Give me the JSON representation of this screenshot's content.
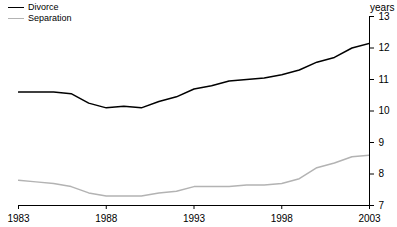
{
  "chart_data": {
    "type": "line",
    "y_label": "years",
    "x": [
      1983,
      1984,
      1985,
      1986,
      1987,
      1988,
      1989,
      1990,
      1991,
      1992,
      1993,
      1994,
      1995,
      1996,
      1997,
      1998,
      1999,
      2000,
      2001,
      2002,
      2003
    ],
    "series": [
      {
        "name": "Divorce",
        "color": "#000000",
        "values": [
          10.6,
          10.6,
          10.6,
          10.55,
          10.25,
          10.1,
          10.15,
          10.1,
          10.3,
          10.45,
          10.7,
          10.8,
          10.95,
          11.0,
          11.05,
          11.15,
          11.3,
          11.55,
          11.7,
          12.0,
          12.15
        ]
      },
      {
        "name": "Separation",
        "color": "#b3b3b3",
        "values": [
          7.8,
          7.75,
          7.7,
          7.6,
          7.4,
          7.3,
          7.3,
          7.3,
          7.4,
          7.45,
          7.6,
          7.6,
          7.6,
          7.65,
          7.65,
          7.7,
          7.85,
          8.2,
          8.35,
          8.55,
          8.6
        ]
      }
    ],
    "xlim": [
      1983,
      2003
    ],
    "xticks": [
      1983,
      1988,
      1993,
      1998,
      2003
    ],
    "ylim": [
      7,
      13
    ],
    "yticks": [
      7,
      8,
      9,
      10,
      11,
      12,
      13
    ],
    "legend": "top-left",
    "grid": false
  }
}
